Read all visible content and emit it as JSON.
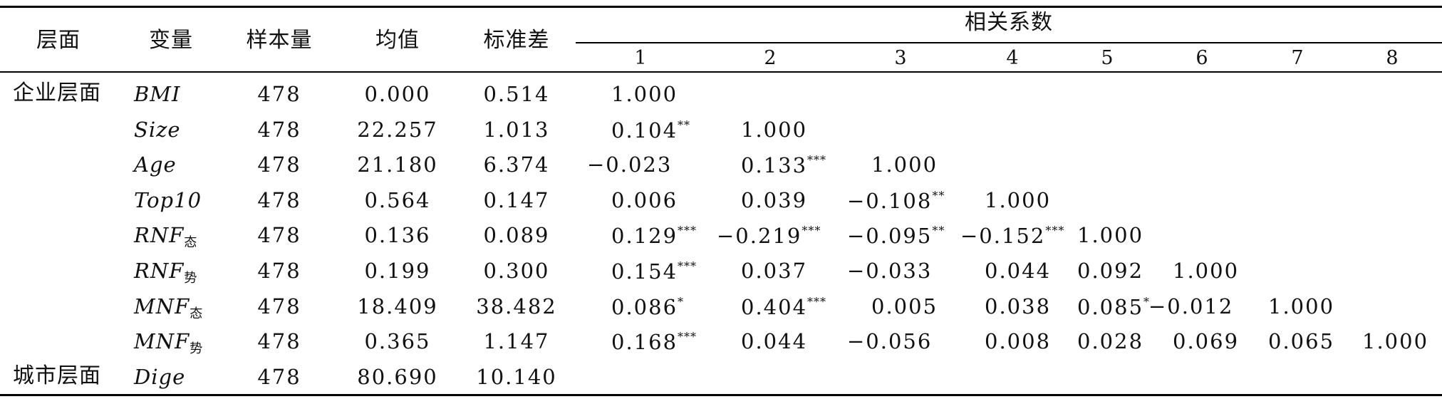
{
  "headers": {
    "level": "层面",
    "variable": "变量",
    "n": "样本量",
    "mean": "均值",
    "sd": "标准差",
    "corr": "相关系数",
    "corr_cols": [
      "1",
      "2",
      "3",
      "4",
      "5",
      "6",
      "7",
      "8"
    ]
  },
  "rows": [
    {
      "level": "企业层面",
      "var": "BMI",
      "sub": "",
      "n": "478",
      "mean": "0.000",
      "sd": "0.514",
      "corr": [
        {
          "v": "1.000",
          "s": ""
        }
      ]
    },
    {
      "level": "",
      "var": "Size",
      "sub": "",
      "n": "478",
      "mean": "22.257",
      "sd": "1.013",
      "corr": [
        {
          "v": "0.104",
          "s": "**"
        },
        {
          "v": "1.000",
          "s": ""
        }
      ]
    },
    {
      "level": "",
      "var": "Age",
      "sub": "",
      "n": "478",
      "mean": "21.180",
      "sd": "6.374",
      "corr": [
        {
          "v": "−0.023",
          "s": ""
        },
        {
          "v": "0.133",
          "s": "***"
        },
        {
          "v": "1.000",
          "s": ""
        }
      ]
    },
    {
      "level": "",
      "var": "Top10",
      "sub": "",
      "n": "478",
      "mean": "0.564",
      "sd": "0.147",
      "corr": [
        {
          "v": "0.006",
          "s": ""
        },
        {
          "v": "0.039",
          "s": ""
        },
        {
          "v": "−0.108",
          "s": "**"
        },
        {
          "v": "1.000",
          "s": ""
        }
      ]
    },
    {
      "level": "",
      "var": "RNF",
      "sub": "态",
      "n": "478",
      "mean": "0.136",
      "sd": "0.089",
      "corr": [
        {
          "v": "0.129",
          "s": "***"
        },
        {
          "v": "−0.219",
          "s": "***"
        },
        {
          "v": "−0.095",
          "s": "**"
        },
        {
          "v": "−0.152",
          "s": "***"
        },
        {
          "v": "1.000",
          "s": ""
        }
      ]
    },
    {
      "level": "",
      "var": "RNF",
      "sub": "势",
      "n": "478",
      "mean": "0.199",
      "sd": "0.300",
      "corr": [
        {
          "v": "0.154",
          "s": "***"
        },
        {
          "v": "0.037",
          "s": ""
        },
        {
          "v": "−0.033",
          "s": ""
        },
        {
          "v": "0.044",
          "s": ""
        },
        {
          "v": "0.092",
          "s": ""
        },
        {
          "v": "1.000",
          "s": ""
        }
      ]
    },
    {
      "level": "",
      "var": "MNF",
      "sub": "态",
      "n": "478",
      "mean": "18.409",
      "sd": "38.482",
      "corr": [
        {
          "v": "0.086",
          "s": "*"
        },
        {
          "v": "0.404",
          "s": "***"
        },
        {
          "v": "0.005",
          "s": ""
        },
        {
          "v": "0.038",
          "s": ""
        },
        {
          "v": "0.085",
          "s": "*"
        },
        {
          "v": "−0.012",
          "s": ""
        },
        {
          "v": "1.000",
          "s": ""
        }
      ]
    },
    {
      "level": "",
      "var": "MNF",
      "sub": "势",
      "n": "478",
      "mean": "0.365",
      "sd": "1.147",
      "corr": [
        {
          "v": "0.168",
          "s": "***"
        },
        {
          "v": "0.044",
          "s": ""
        },
        {
          "v": "−0.056",
          "s": ""
        },
        {
          "v": "0.008",
          "s": ""
        },
        {
          "v": "0.028",
          "s": ""
        },
        {
          "v": "0.069",
          "s": ""
        },
        {
          "v": "0.065",
          "s": ""
        },
        {
          "v": "1.000",
          "s": ""
        }
      ]
    },
    {
      "level": "城市层面",
      "var": "Dige",
      "sub": "",
      "n": "478",
      "mean": "80.690",
      "sd": "10.140",
      "corr": []
    }
  ]
}
